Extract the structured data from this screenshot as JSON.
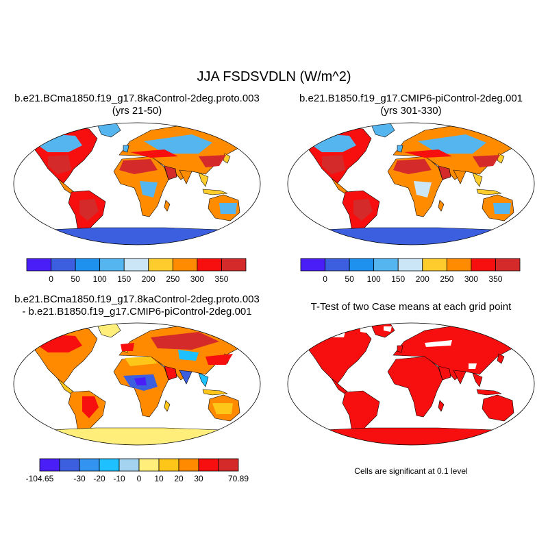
{
  "figure": {
    "title": "JJA FSDSVDLN (W/m^2)"
  },
  "chart_data": [
    {
      "type": "heatmap",
      "panel": "case-1",
      "title": "b.e21.BCma1850.f19_g17.8kaControl-2deg.proto.003",
      "subtitle": "(yrs 21-50)",
      "projection": "Robinson world map",
      "colorbar": {
        "colors": [
          "#4a1ff7",
          "#3c5fe0",
          "#1e90ee",
          "#55b5ef",
          "#cae6f7",
          "#ffcc2e",
          "#ff8c00",
          "#f70e0e",
          "#d42a2a"
        ],
        "tick_labels": [
          "0",
          "50",
          "100",
          "150",
          "200",
          "250",
          "300",
          "350"
        ]
      }
    },
    {
      "type": "heatmap",
      "panel": "case-2",
      "title": "b.e21.B1850.f19_g17.CMIP6-piControl-2deg.001",
      "subtitle": "(yrs 301-330)",
      "projection": "Robinson world map",
      "colorbar": {
        "colors": [
          "#4a1ff7",
          "#3c5fe0",
          "#1e90ee",
          "#55b5ef",
          "#cae6f7",
          "#ffcc2e",
          "#ff8c00",
          "#f70e0e",
          "#d42a2a"
        ],
        "tick_labels": [
          "0",
          "50",
          "100",
          "150",
          "200",
          "250",
          "300",
          "350"
        ]
      }
    },
    {
      "type": "heatmap",
      "panel": "difference",
      "title": "b.e21.BCma1850.f19_g17.8kaControl-2deg.proto.003",
      "subtitle": "- b.e21.B1850.f19_g17.CMIP6-piControl-2deg.001",
      "projection": "Robinson world map",
      "colorbar": {
        "colors": [
          "#4a1ff7",
          "#3c5fe0",
          "#3393f0",
          "#1ec0ff",
          "#a3d3ee",
          "#ffef7a",
          "#ffc61a",
          "#ff8a00",
          "#f70e0e",
          "#d42a2a"
        ],
        "tick_labels": [
          "-104.65",
          "-30",
          "-20",
          "-10",
          "0",
          "10",
          "20",
          "30",
          "70.89"
        ]
      }
    },
    {
      "type": "heatmap",
      "panel": "t-test",
      "title": "T-Test of two Case means at each grid point",
      "projection": "Robinson world map",
      "note": "Cells are significant at 0.1 level",
      "fill_color": "#f70e0e"
    }
  ]
}
